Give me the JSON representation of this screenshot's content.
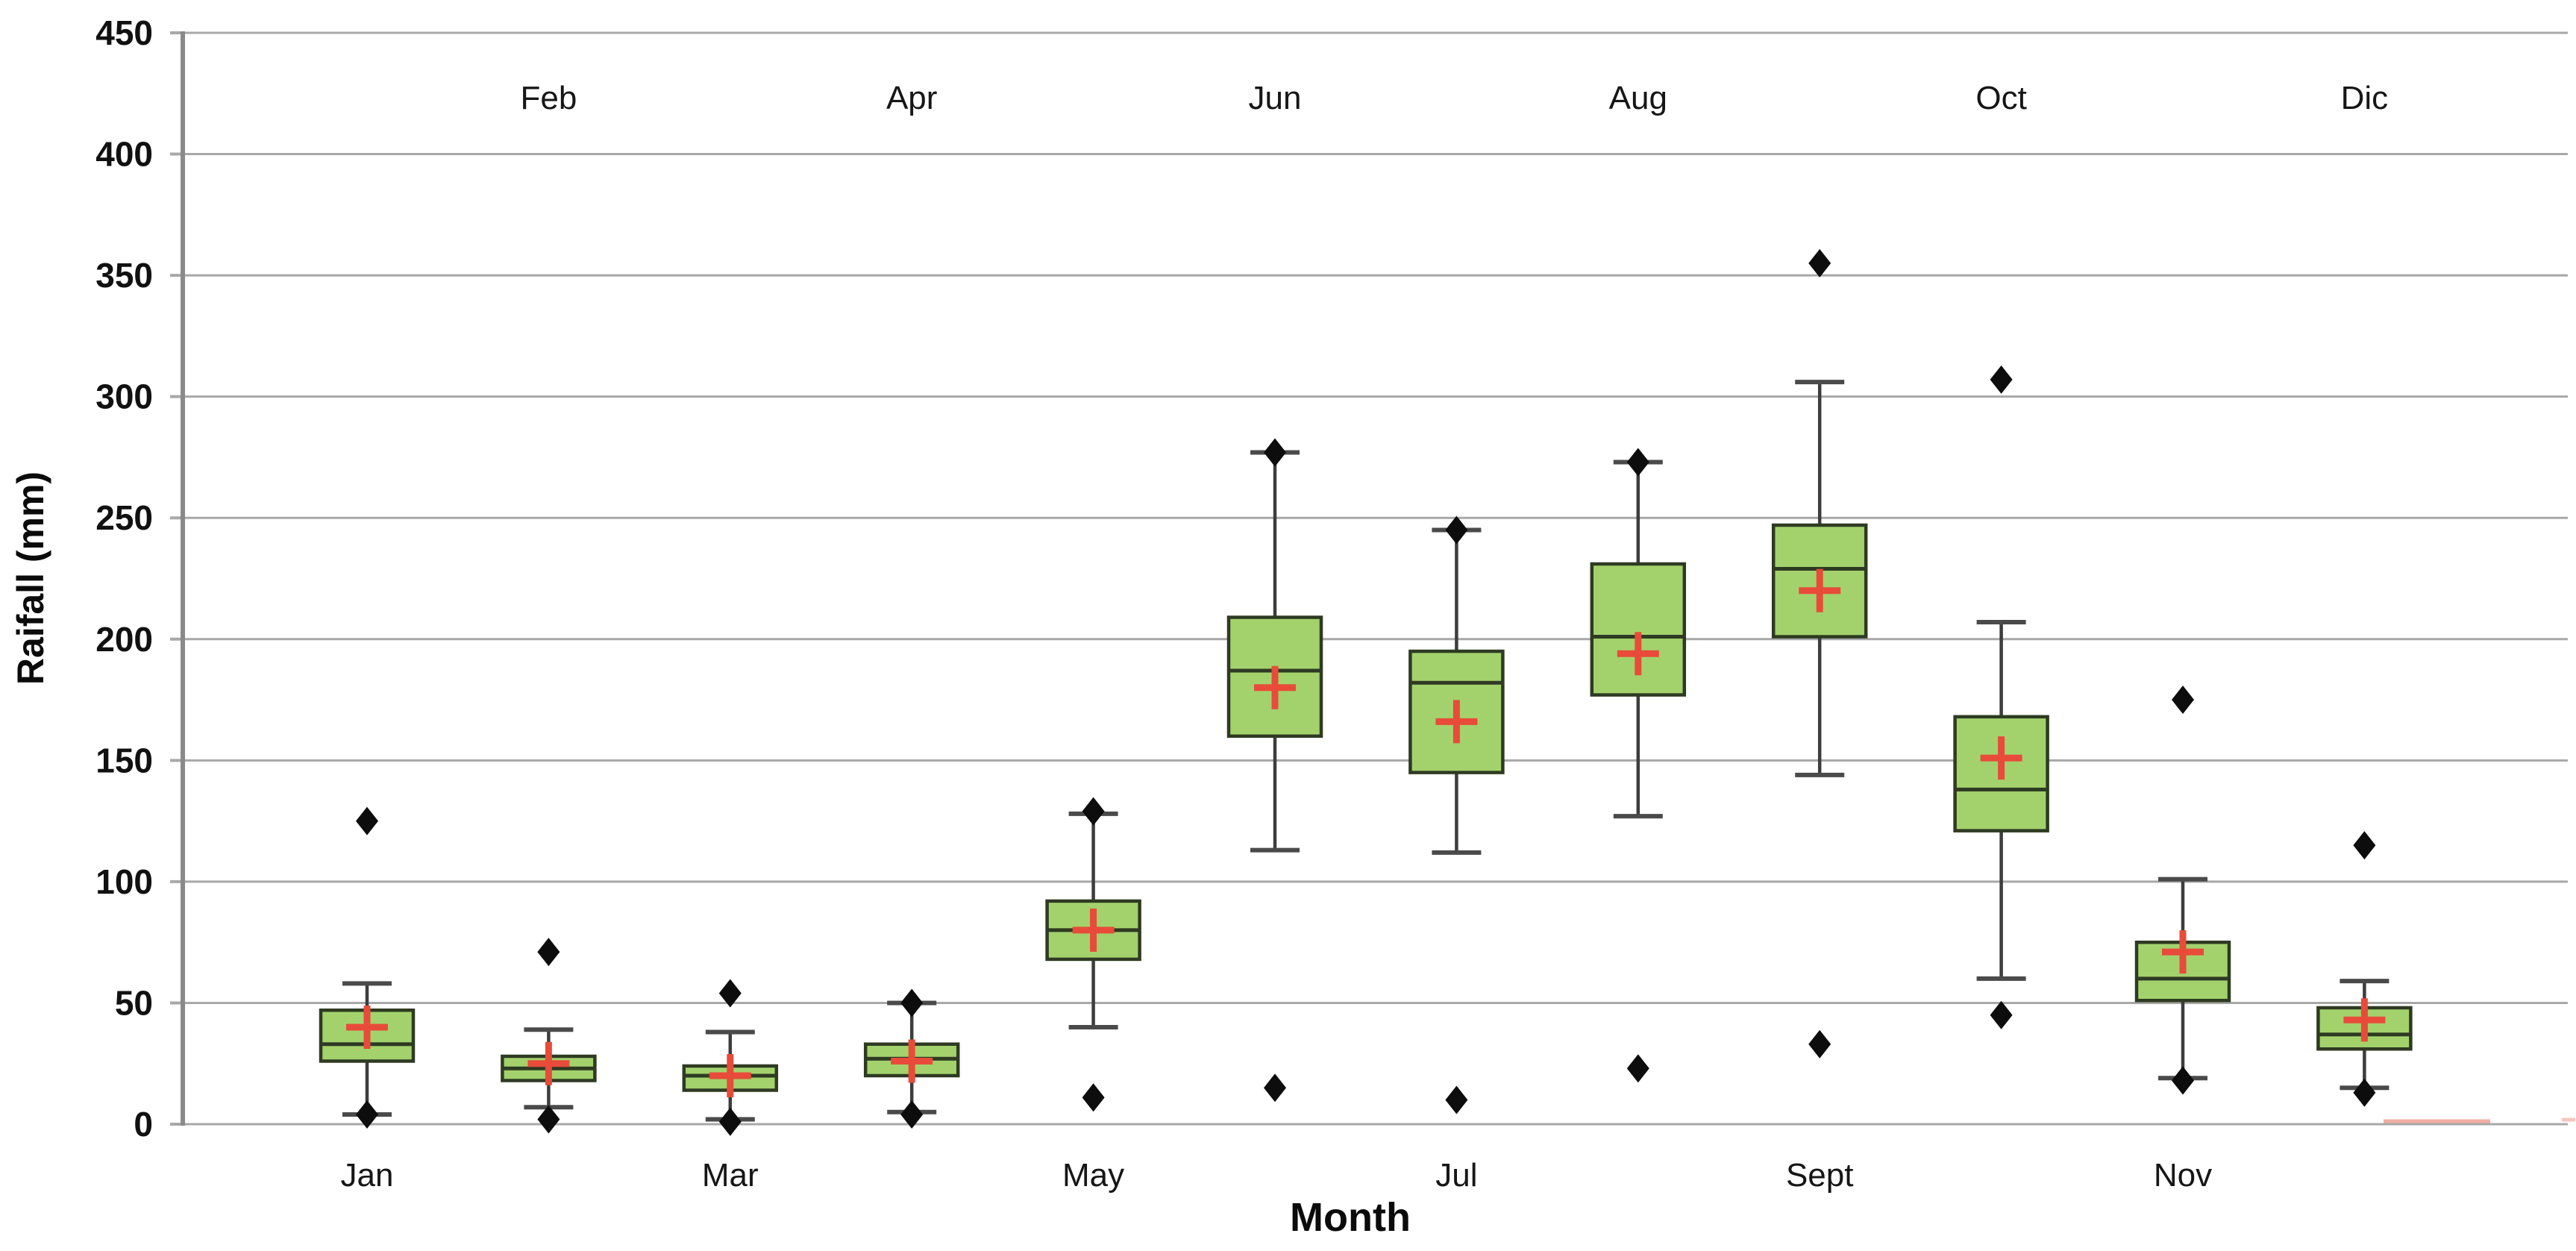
{
  "chart_data": {
    "type": "box",
    "title": "",
    "ylabel": "Raifall (mm)",
    "xlabel": "Month",
    "legend": "none",
    "grid": "horizontal",
    "y_axis": {
      "min": 0,
      "max": 450,
      "step": 50,
      "ticks": [
        450,
        400,
        350,
        300,
        250,
        200,
        150,
        100,
        50,
        0
      ]
    },
    "months": [
      {
        "label": "Jan",
        "label_row": "bottom",
        "whisker_low": 4,
        "q1": 26,
        "median": 33,
        "q3": 47,
        "whisker_high": 58,
        "mean": 40,
        "outliers": [
          125,
          4
        ]
      },
      {
        "label": "Feb",
        "label_row": "top",
        "whisker_low": 7,
        "q1": 18,
        "median": 23,
        "q3": 28,
        "whisker_high": 39,
        "mean": 25,
        "outliers": [
          71,
          2
        ]
      },
      {
        "label": "Mar",
        "label_row": "bottom",
        "whisker_low": 2,
        "q1": 14,
        "median": 20,
        "q3": 24,
        "whisker_high": 38,
        "mean": 20,
        "outliers": [
          54,
          1
        ]
      },
      {
        "label": "Apr",
        "label_row": "top",
        "whisker_low": 5,
        "q1": 20,
        "median": 27,
        "q3": 33,
        "whisker_high": 50,
        "mean": 26,
        "outliers": [
          50,
          4
        ]
      },
      {
        "label": "May",
        "label_row": "bottom",
        "whisker_low": 40,
        "q1": 68,
        "median": 80,
        "q3": 92,
        "whisker_high": 128,
        "mean": 80,
        "outliers": [
          129,
          11
        ]
      },
      {
        "label": "Jun",
        "label_row": "top",
        "whisker_low": 113,
        "q1": 160,
        "median": 187,
        "q3": 209,
        "whisker_high": 277,
        "mean": 180,
        "outliers": [
          277,
          15
        ]
      },
      {
        "label": "Jul",
        "label_row": "bottom",
        "whisker_low": 112,
        "q1": 145,
        "median": 182,
        "q3": 195,
        "whisker_high": 245,
        "mean": 166,
        "outliers": [
          245,
          10
        ]
      },
      {
        "label": "Aug",
        "label_row": "top",
        "whisker_low": 127,
        "q1": 177,
        "median": 201,
        "q3": 231,
        "whisker_high": 273,
        "mean": 194,
        "outliers": [
          273,
          23
        ]
      },
      {
        "label": "Sept",
        "label_row": "bottom",
        "whisker_low": 144,
        "q1": 201,
        "median": 229,
        "q3": 247,
        "whisker_high": 306,
        "mean": 220,
        "outliers": [
          355,
          33
        ]
      },
      {
        "label": "Oct",
        "label_row": "top",
        "whisker_low": 60,
        "q1": 121,
        "median": 138,
        "q3": 168,
        "whisker_high": 207,
        "mean": 151,
        "outliers": [
          307,
          45
        ]
      },
      {
        "label": "Nov",
        "label_row": "bottom",
        "whisker_low": 19,
        "q1": 51,
        "median": 60,
        "q3": 75,
        "whisker_high": 101,
        "mean": 71,
        "outliers": [
          175,
          18
        ]
      },
      {
        "label": "Dic",
        "label_row": "top",
        "whisker_low": 15,
        "q1": 31,
        "median": 37,
        "q3": 48,
        "whisker_high": 59,
        "mean": 43,
        "outliers": [
          115,
          13
        ]
      }
    ],
    "colors": {
      "box_fill": "#a3d26c",
      "box_border": "#2e3a22",
      "median": "#2e3a22",
      "whisker": "#3d3d3d",
      "whisker_cap": "#4a4a4a",
      "mean_marker": "#e84b3a",
      "outlier": "#0d0d0d",
      "gridline": "#a8a8a8",
      "axis_line": "#8a8a8a",
      "artifact_red": "#e2604b"
    }
  }
}
